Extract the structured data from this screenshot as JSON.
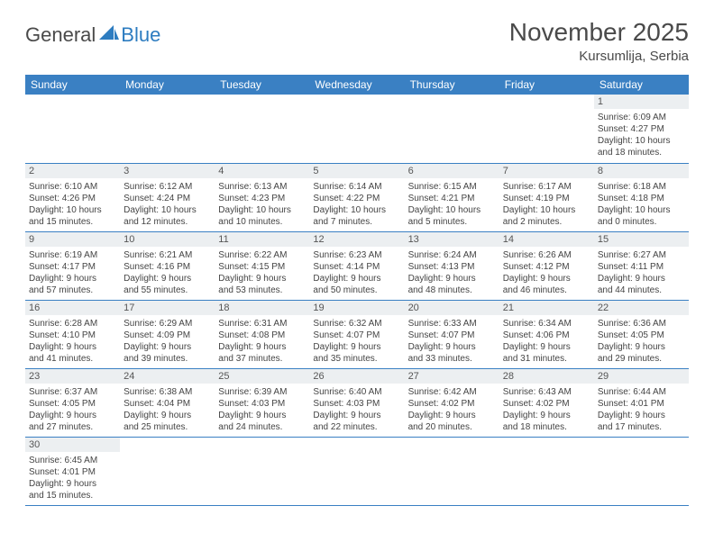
{
  "logo": {
    "text1": "General",
    "text2": "Blue"
  },
  "title": "November 2025",
  "location": "Kursumlija, Serbia",
  "colors": {
    "header_bg": "#3a80c3",
    "header_text": "#ffffff",
    "daynum_bg": "#eceff1",
    "border": "#3a80c3",
    "logo_accent": "#2d7cc0"
  },
  "weekdays": [
    "Sunday",
    "Monday",
    "Tuesday",
    "Wednesday",
    "Thursday",
    "Friday",
    "Saturday"
  ],
  "weeks": [
    [
      null,
      null,
      null,
      null,
      null,
      null,
      {
        "n": "1",
        "sr": "Sunrise: 6:09 AM",
        "ss": "Sunset: 4:27 PM",
        "d1": "Daylight: 10 hours",
        "d2": "and 18 minutes."
      }
    ],
    [
      {
        "n": "2",
        "sr": "Sunrise: 6:10 AM",
        "ss": "Sunset: 4:26 PM",
        "d1": "Daylight: 10 hours",
        "d2": "and 15 minutes."
      },
      {
        "n": "3",
        "sr": "Sunrise: 6:12 AM",
        "ss": "Sunset: 4:24 PM",
        "d1": "Daylight: 10 hours",
        "d2": "and 12 minutes."
      },
      {
        "n": "4",
        "sr": "Sunrise: 6:13 AM",
        "ss": "Sunset: 4:23 PM",
        "d1": "Daylight: 10 hours",
        "d2": "and 10 minutes."
      },
      {
        "n": "5",
        "sr": "Sunrise: 6:14 AM",
        "ss": "Sunset: 4:22 PM",
        "d1": "Daylight: 10 hours",
        "d2": "and 7 minutes."
      },
      {
        "n": "6",
        "sr": "Sunrise: 6:15 AM",
        "ss": "Sunset: 4:21 PM",
        "d1": "Daylight: 10 hours",
        "d2": "and 5 minutes."
      },
      {
        "n": "7",
        "sr": "Sunrise: 6:17 AM",
        "ss": "Sunset: 4:19 PM",
        "d1": "Daylight: 10 hours",
        "d2": "and 2 minutes."
      },
      {
        "n": "8",
        "sr": "Sunrise: 6:18 AM",
        "ss": "Sunset: 4:18 PM",
        "d1": "Daylight: 10 hours",
        "d2": "and 0 minutes."
      }
    ],
    [
      {
        "n": "9",
        "sr": "Sunrise: 6:19 AM",
        "ss": "Sunset: 4:17 PM",
        "d1": "Daylight: 9 hours",
        "d2": "and 57 minutes."
      },
      {
        "n": "10",
        "sr": "Sunrise: 6:21 AM",
        "ss": "Sunset: 4:16 PM",
        "d1": "Daylight: 9 hours",
        "d2": "and 55 minutes."
      },
      {
        "n": "11",
        "sr": "Sunrise: 6:22 AM",
        "ss": "Sunset: 4:15 PM",
        "d1": "Daylight: 9 hours",
        "d2": "and 53 minutes."
      },
      {
        "n": "12",
        "sr": "Sunrise: 6:23 AM",
        "ss": "Sunset: 4:14 PM",
        "d1": "Daylight: 9 hours",
        "d2": "and 50 minutes."
      },
      {
        "n": "13",
        "sr": "Sunrise: 6:24 AM",
        "ss": "Sunset: 4:13 PM",
        "d1": "Daylight: 9 hours",
        "d2": "and 48 minutes."
      },
      {
        "n": "14",
        "sr": "Sunrise: 6:26 AM",
        "ss": "Sunset: 4:12 PM",
        "d1": "Daylight: 9 hours",
        "d2": "and 46 minutes."
      },
      {
        "n": "15",
        "sr": "Sunrise: 6:27 AM",
        "ss": "Sunset: 4:11 PM",
        "d1": "Daylight: 9 hours",
        "d2": "and 44 minutes."
      }
    ],
    [
      {
        "n": "16",
        "sr": "Sunrise: 6:28 AM",
        "ss": "Sunset: 4:10 PM",
        "d1": "Daylight: 9 hours",
        "d2": "and 41 minutes."
      },
      {
        "n": "17",
        "sr": "Sunrise: 6:29 AM",
        "ss": "Sunset: 4:09 PM",
        "d1": "Daylight: 9 hours",
        "d2": "and 39 minutes."
      },
      {
        "n": "18",
        "sr": "Sunrise: 6:31 AM",
        "ss": "Sunset: 4:08 PM",
        "d1": "Daylight: 9 hours",
        "d2": "and 37 minutes."
      },
      {
        "n": "19",
        "sr": "Sunrise: 6:32 AM",
        "ss": "Sunset: 4:07 PM",
        "d1": "Daylight: 9 hours",
        "d2": "and 35 minutes."
      },
      {
        "n": "20",
        "sr": "Sunrise: 6:33 AM",
        "ss": "Sunset: 4:07 PM",
        "d1": "Daylight: 9 hours",
        "d2": "and 33 minutes."
      },
      {
        "n": "21",
        "sr": "Sunrise: 6:34 AM",
        "ss": "Sunset: 4:06 PM",
        "d1": "Daylight: 9 hours",
        "d2": "and 31 minutes."
      },
      {
        "n": "22",
        "sr": "Sunrise: 6:36 AM",
        "ss": "Sunset: 4:05 PM",
        "d1": "Daylight: 9 hours",
        "d2": "and 29 minutes."
      }
    ],
    [
      {
        "n": "23",
        "sr": "Sunrise: 6:37 AM",
        "ss": "Sunset: 4:05 PM",
        "d1": "Daylight: 9 hours",
        "d2": "and 27 minutes."
      },
      {
        "n": "24",
        "sr": "Sunrise: 6:38 AM",
        "ss": "Sunset: 4:04 PM",
        "d1": "Daylight: 9 hours",
        "d2": "and 25 minutes."
      },
      {
        "n": "25",
        "sr": "Sunrise: 6:39 AM",
        "ss": "Sunset: 4:03 PM",
        "d1": "Daylight: 9 hours",
        "d2": "and 24 minutes."
      },
      {
        "n": "26",
        "sr": "Sunrise: 6:40 AM",
        "ss": "Sunset: 4:03 PM",
        "d1": "Daylight: 9 hours",
        "d2": "and 22 minutes."
      },
      {
        "n": "27",
        "sr": "Sunrise: 6:42 AM",
        "ss": "Sunset: 4:02 PM",
        "d1": "Daylight: 9 hours",
        "d2": "and 20 minutes."
      },
      {
        "n": "28",
        "sr": "Sunrise: 6:43 AM",
        "ss": "Sunset: 4:02 PM",
        "d1": "Daylight: 9 hours",
        "d2": "and 18 minutes."
      },
      {
        "n": "29",
        "sr": "Sunrise: 6:44 AM",
        "ss": "Sunset: 4:01 PM",
        "d1": "Daylight: 9 hours",
        "d2": "and 17 minutes."
      }
    ],
    [
      {
        "n": "30",
        "sr": "Sunrise: 6:45 AM",
        "ss": "Sunset: 4:01 PM",
        "d1": "Daylight: 9 hours",
        "d2": "and 15 minutes."
      },
      null,
      null,
      null,
      null,
      null,
      null
    ]
  ]
}
